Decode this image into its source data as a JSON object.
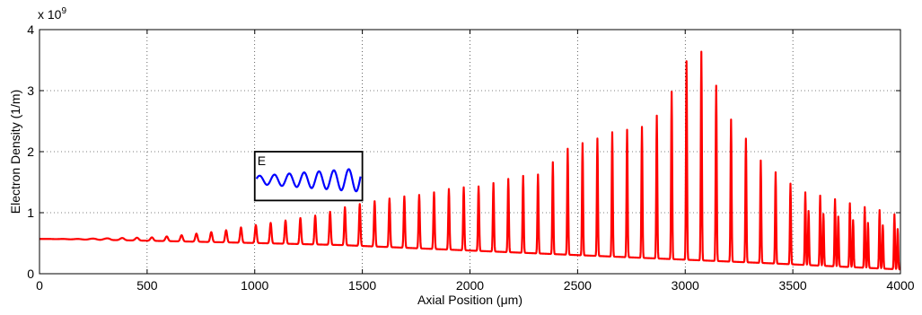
{
  "chart_data": {
    "type": "line",
    "xlabel": "Axial Position (μm)",
    "ylabel": "Electron Density (1/m)",
    "y_exponent_label": "x 10",
    "y_exponent_power": "9",
    "xlim": [
      0,
      4000
    ],
    "ylim": [
      0,
      4
    ],
    "x_ticks": [
      0,
      500,
      1000,
      1500,
      2000,
      2500,
      3000,
      3500,
      4000
    ],
    "y_ticks": [
      0,
      1,
      2,
      3,
      4
    ],
    "grid": "dotted",
    "series": [
      {
        "color": "#ff0000",
        "baseline": 0.57,
        "period_um": 69,
        "peaks": [
          [
            0,
            0.57
          ],
          [
            70,
            0.57
          ],
          [
            140,
            0.57
          ],
          [
            207,
            0.57
          ],
          [
            276,
            0.58
          ],
          [
            345,
            0.58
          ],
          [
            414,
            0.59
          ],
          [
            483,
            0.59
          ],
          [
            552,
            0.6
          ],
          [
            621,
            0.62
          ],
          [
            690,
            0.64
          ],
          [
            759,
            0.67
          ],
          [
            828,
            0.69
          ],
          [
            897,
            0.73
          ],
          [
            966,
            0.78
          ],
          [
            1035,
            0.81
          ],
          [
            1104,
            0.85
          ],
          [
            1173,
            0.89
          ],
          [
            1242,
            0.93
          ],
          [
            1311,
            0.97
          ],
          [
            1380,
            1.05
          ],
          [
            1449,
            1.12
          ],
          [
            1518,
            1.16
          ],
          [
            1587,
            1.21
          ],
          [
            1656,
            1.25
          ],
          [
            1725,
            1.28
          ],
          [
            1794,
            1.3
          ],
          [
            1863,
            1.36
          ],
          [
            1932,
            1.41
          ],
          [
            2001,
            1.42
          ],
          [
            2070,
            1.44
          ],
          [
            2139,
            1.52
          ],
          [
            2208,
            1.58
          ],
          [
            2277,
            1.62
          ],
          [
            2346,
            1.63
          ],
          [
            2415,
            1.98
          ],
          [
            2484,
            2.1
          ],
          [
            2553,
            2.17
          ],
          [
            2622,
            2.25
          ],
          [
            2691,
            2.37
          ],
          [
            2760,
            2.35
          ],
          [
            2829,
            2.45
          ],
          [
            2898,
            2.7
          ],
          [
            2967,
            3.2
          ],
          [
            3036,
            3.7
          ],
          [
            3105,
            3.59
          ],
          [
            3174,
            2.69
          ],
          [
            3243,
            2.4
          ],
          [
            3312,
            2.07
          ],
          [
            3381,
            1.69
          ],
          [
            3450,
            1.64
          ],
          [
            3519,
            1.35
          ],
          [
            3588,
            1.32
          ],
          [
            3657,
            1.25
          ],
          [
            3726,
            1.2
          ],
          [
            3795,
            1.12
          ],
          [
            3864,
            1.07
          ],
          [
            3933,
            1.02
          ],
          [
            3990,
            0.95
          ]
        ]
      }
    ],
    "inset": {
      "label": "E",
      "color": "#0000ff",
      "x_range": [
        1000,
        1500
      ],
      "y_range": [
        1.2,
        2.0
      ],
      "cycles": 7
    }
  }
}
